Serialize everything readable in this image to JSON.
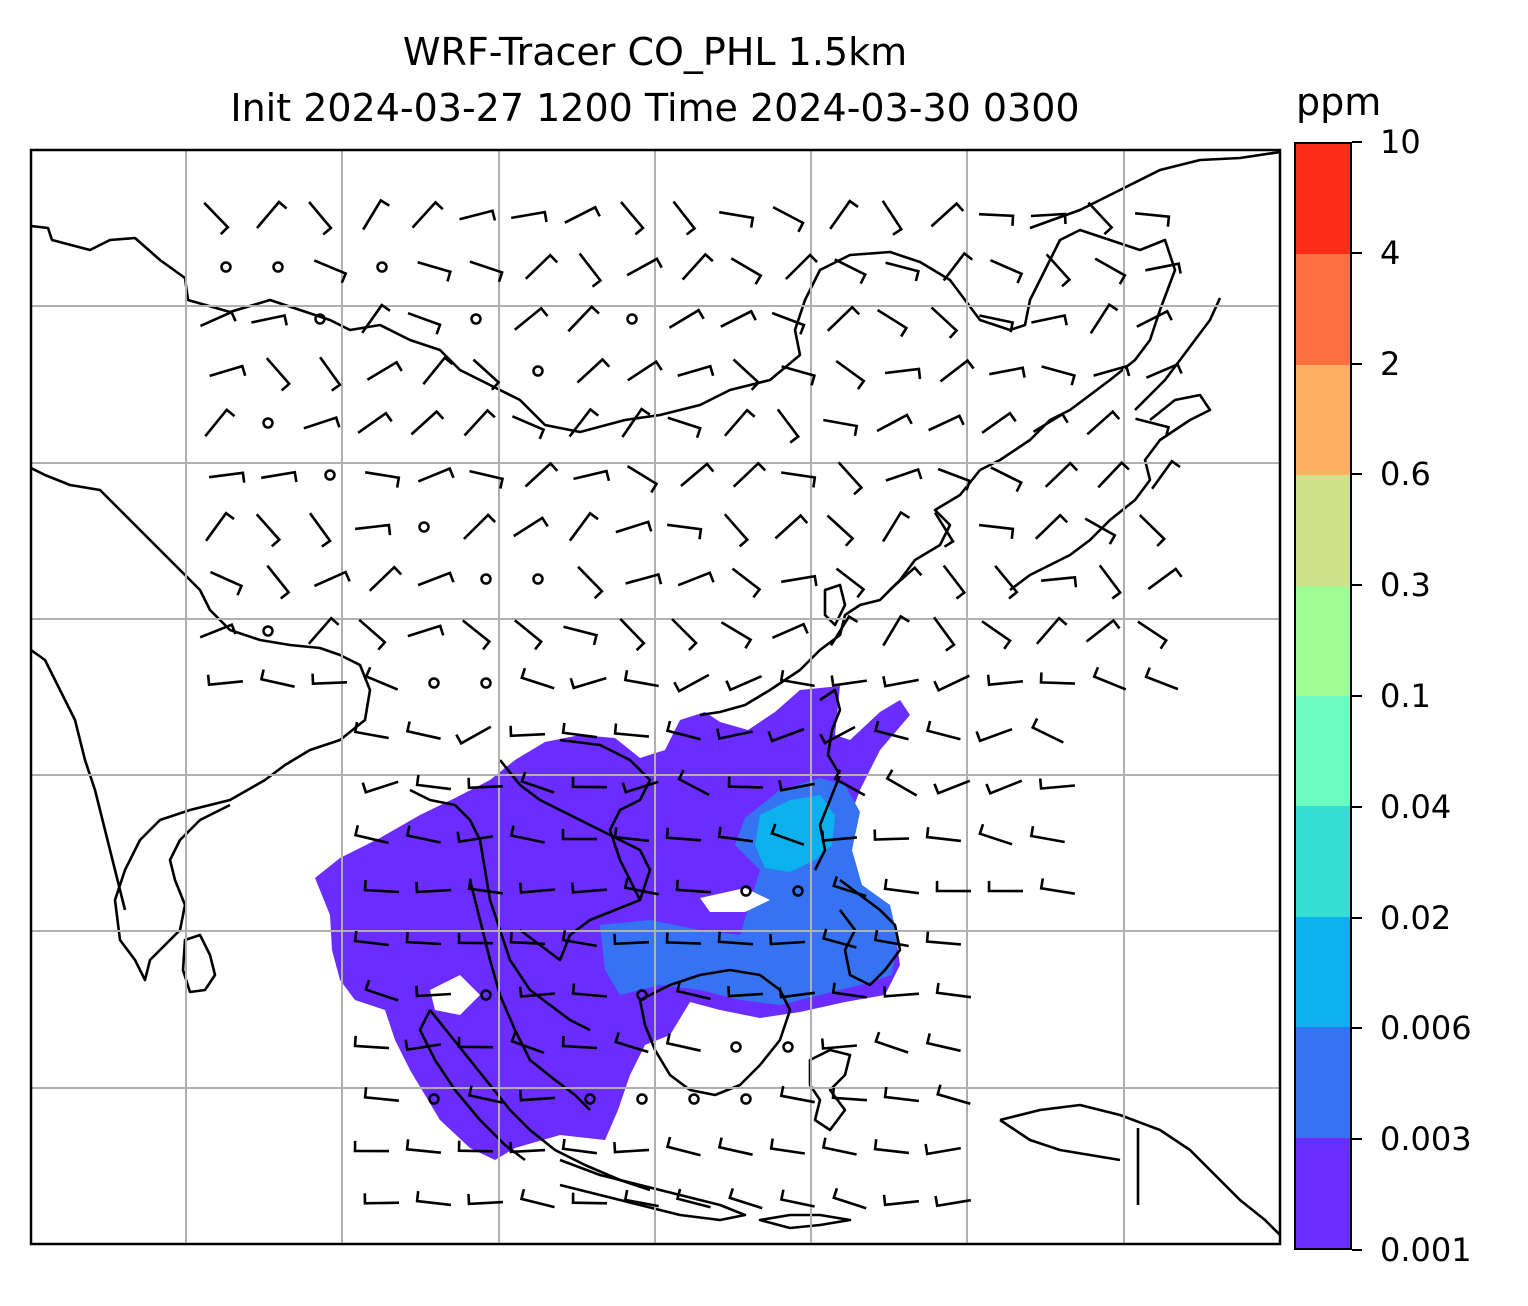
{
  "title": {
    "line1": "WRF-Tracer CO_PHL 1.5km",
    "line2": "Init 2024-03-27 1200 Time 2024-03-30 0300"
  },
  "colorbar": {
    "unit": "ppm",
    "levels": [
      "0.001",
      "0.003",
      "0.006",
      "0.02",
      "0.04",
      "0.1",
      "0.3",
      "0.6",
      "2",
      "4",
      "10"
    ],
    "colors": [
      "#6a2cff",
      "#3573f3",
      "#0bb1ec",
      "#35dfd3",
      "#6cfbc0",
      "#9ffb94",
      "#cfe18a",
      "#fdb062",
      "#fe7040",
      "#fb2d16"
    ]
  },
  "map": {
    "colors": {
      "plume_light": "#6a2cff",
      "plume_mid": "#3573f3",
      "plume_core": "#0bb1ec",
      "coastline": "#000000",
      "gridline": "#b0b0b0",
      "wind_barb": "#000000"
    }
  }
}
